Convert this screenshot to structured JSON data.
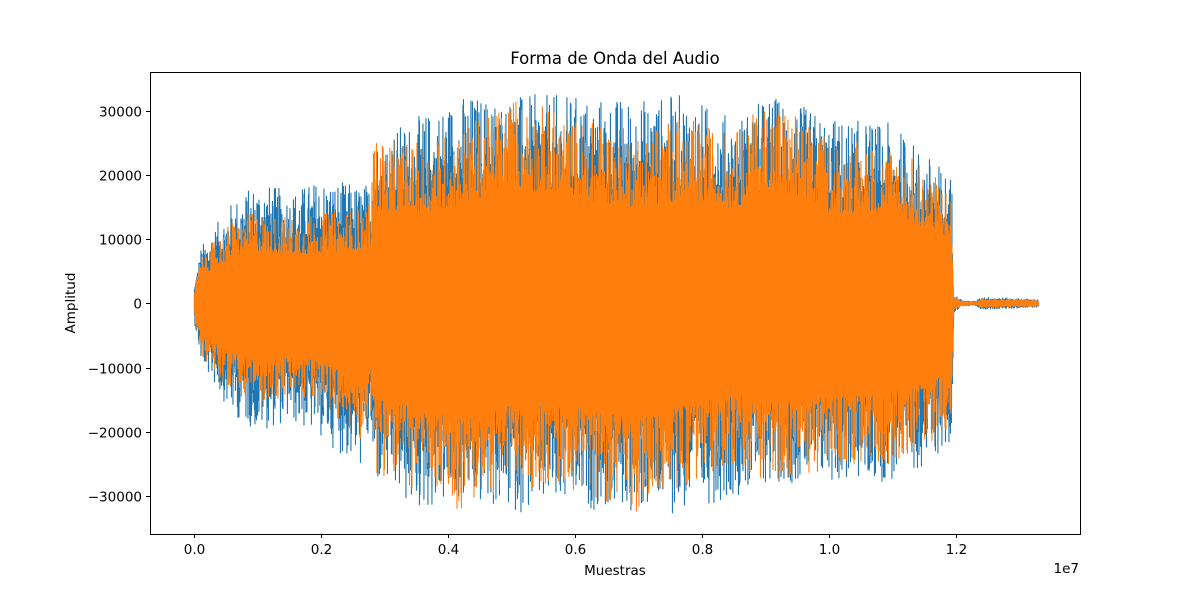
{
  "chart_data": {
    "type": "area",
    "title": "Forma de Onda del Audio",
    "xlabel": "Muestras",
    "ylabel": "Amplitud",
    "x_offset_label": "1e7",
    "xlim": [
      -700000,
      13950000
    ],
    "ylim": [
      -35900,
      36000
    ],
    "x_ticks": [
      {
        "value": 0,
        "label": "0.0"
      },
      {
        "value": 2000000,
        "label": "0.2"
      },
      {
        "value": 4000000,
        "label": "0.4"
      },
      {
        "value": 6000000,
        "label": "0.6"
      },
      {
        "value": 8000000,
        "label": "0.8"
      },
      {
        "value": 10000000,
        "label": "1.0"
      },
      {
        "value": 12000000,
        "label": "1.2"
      }
    ],
    "y_ticks": [
      {
        "value": -30000,
        "label": "−30000"
      },
      {
        "value": -20000,
        "label": "−20000"
      },
      {
        "value": -10000,
        "label": "−10000"
      },
      {
        "value": 0,
        "label": "0"
      },
      {
        "value": 10000,
        "label": "10000"
      },
      {
        "value": 20000,
        "label": "20000"
      },
      {
        "value": 30000,
        "label": "30000"
      }
    ],
    "grid": false,
    "series": [
      {
        "color": "#1f77b4",
        "envelope": {
          "x": [
            0,
            100000,
            600000,
            1000000,
            1500000,
            2000000,
            2600000,
            2790000,
            2800000,
            3500000,
            4200000,
            5000000,
            6000000,
            7000000,
            7700000,
            8500000,
            9100000,
            10000000,
            11000000,
            11800000,
            11930000,
            11960000,
            12100000,
            12300000,
            12400000,
            13300000
          ],
          "upper": [
            3000,
            8800,
            16000,
            19000,
            17500,
            19500,
            18500,
            19000,
            26000,
            29000,
            32700,
            32500,
            32500,
            32000,
            32700,
            29000,
            32700,
            29000,
            28000,
            21000,
            20000,
            1500,
            400,
            300,
            1000,
            600
          ],
          "lower": [
            -3000,
            -9200,
            -17500,
            -20000,
            -18500,
            -21000,
            -26000,
            -21000,
            -28000,
            -32700,
            -31000,
            -32700,
            -32000,
            -32700,
            -32700,
            -30000,
            -28000,
            -28000,
            -28000,
            -23500,
            -23400,
            -1500,
            -400,
            -300,
            -1000,
            -600
          ]
        }
      },
      {
        "color": "#ff7f0e",
        "envelope": {
          "x": [
            0,
            100000,
            600000,
            1000000,
            1500000,
            2000000,
            2600000,
            2790000,
            2800000,
            3500000,
            4200000,
            5000000,
            6000000,
            7000000,
            7700000,
            8500000,
            9100000,
            10000000,
            11000000,
            11800000,
            11930000,
            11960000,
            12100000,
            12300000,
            12400000,
            13300000
          ],
          "upper": [
            2500,
            7500,
            13000,
            14500,
            13500,
            14000,
            15000,
            15500,
            26000,
            25000,
            27500,
            32700,
            29000,
            27000,
            29000,
            26500,
            32700,
            25500,
            25000,
            19000,
            17500,
            1200,
            300,
            200,
            800,
            500
          ],
          "lower": [
            -2500,
            -8000,
            -14000,
            -15500,
            -15000,
            -16000,
            -22000,
            -17000,
            -26000,
            -29500,
            -32700,
            -28500,
            -29000,
            -32700,
            -28500,
            -25500,
            -28000,
            -26000,
            -25000,
            -20500,
            -19500,
            -1200,
            -300,
            -200,
            -800,
            -500
          ]
        }
      }
    ]
  }
}
